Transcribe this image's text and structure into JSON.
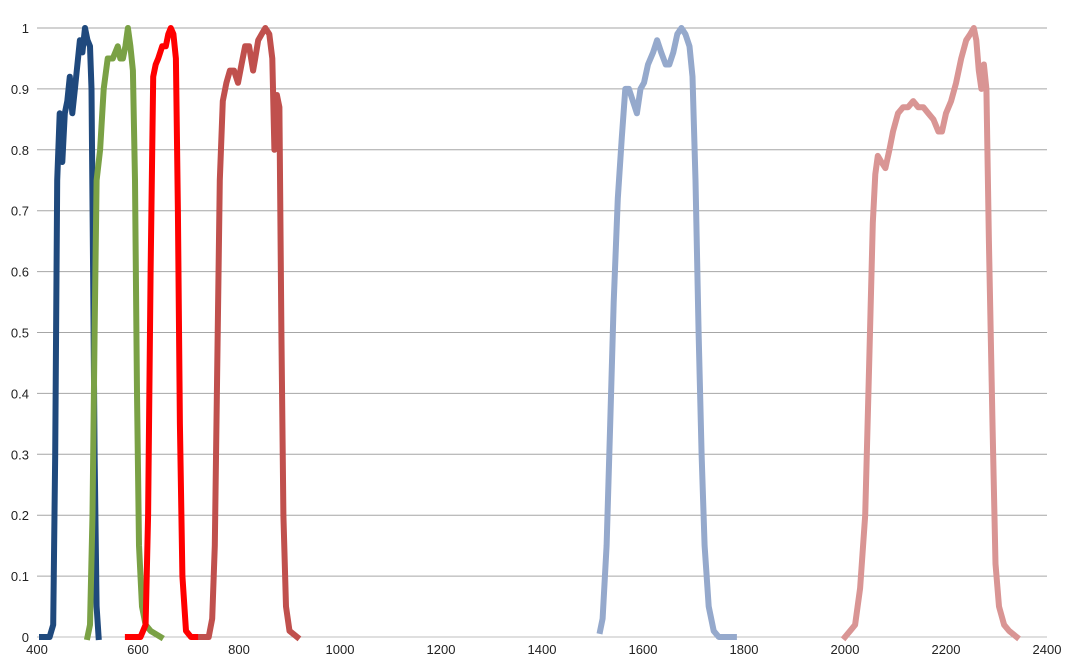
{
  "chart_data": {
    "type": "line",
    "title": "",
    "xlabel": "",
    "ylabel": "",
    "xlim": [
      400,
      2400
    ],
    "ylim": [
      0,
      1
    ],
    "grid": "horizontal",
    "legend": "none",
    "x_ticks": [
      400,
      600,
      800,
      1000,
      1200,
      1400,
      1600,
      1800,
      2000,
      2200,
      2400
    ],
    "y_ticks": [
      0,
      0.1,
      0.2,
      0.3,
      0.4,
      0.5,
      0.6,
      0.7,
      0.8,
      0.9,
      1
    ],
    "x_tick_labels": [
      "400",
      "600",
      "800",
      "1000",
      "1200",
      "1400",
      "1600",
      "1800",
      "2000",
      "2200",
      "2400"
    ],
    "y_tick_labels": [
      "0",
      "0.1",
      "0.2",
      "0.3",
      "0.4",
      "0.5",
      "0.6",
      "0.7",
      "0.8",
      "0.9",
      "1"
    ],
    "series": [
      {
        "color": "#1f497d",
        "points": [
          [
            410,
            0
          ],
          [
            425,
            0
          ],
          [
            432,
            0.02
          ],
          [
            436,
            0.3
          ],
          [
            440,
            0.75
          ],
          [
            445,
            0.86
          ],
          [
            450,
            0.78
          ],
          [
            455,
            0.86
          ],
          [
            460,
            0.88
          ],
          [
            465,
            0.92
          ],
          [
            470,
            0.86
          ],
          [
            475,
            0.9
          ],
          [
            480,
            0.94
          ],
          [
            485,
            0.98
          ],
          [
            490,
            0.96
          ],
          [
            495,
            1.0
          ],
          [
            500,
            0.98
          ],
          [
            505,
            0.97
          ],
          [
            508,
            0.9
          ],
          [
            511,
            0.6
          ],
          [
            514,
            0.3
          ],
          [
            518,
            0.05
          ],
          [
            522,
            0
          ]
        ]
      },
      {
        "color": "#7aa145",
        "points": [
          [
            500,
            0
          ],
          [
            505,
            0.02
          ],
          [
            510,
            0.2
          ],
          [
            514,
            0.5
          ],
          [
            518,
            0.75
          ],
          [
            525,
            0.8
          ],
          [
            532,
            0.9
          ],
          [
            540,
            0.95
          ],
          [
            550,
            0.95
          ],
          [
            560,
            0.97
          ],
          [
            565,
            0.95
          ],
          [
            570,
            0.95
          ],
          [
            575,
            0.97
          ],
          [
            580,
            1.0
          ],
          [
            585,
            0.97
          ],
          [
            590,
            0.93
          ],
          [
            594,
            0.75
          ],
          [
            598,
            0.4
          ],
          [
            602,
            0.15
          ],
          [
            608,
            0.05
          ],
          [
            615,
            0.02
          ],
          [
            625,
            0.01
          ],
          [
            645,
            0
          ]
        ]
      },
      {
        "color": "#ff0000",
        "points": [
          [
            580,
            0
          ],
          [
            605,
            0
          ],
          [
            615,
            0.02
          ],
          [
            620,
            0.2
          ],
          [
            625,
            0.6
          ],
          [
            630,
            0.92
          ],
          [
            635,
            0.94
          ],
          [
            640,
            0.95
          ],
          [
            648,
            0.97
          ],
          [
            655,
            0.97
          ],
          [
            660,
            0.99
          ],
          [
            665,
            1.0
          ],
          [
            670,
            0.99
          ],
          [
            675,
            0.95
          ],
          [
            679,
            0.7
          ],
          [
            683,
            0.35
          ],
          [
            688,
            0.1
          ],
          [
            695,
            0.01
          ],
          [
            705,
            0
          ],
          [
            725,
            0
          ]
        ]
      },
      {
        "color": "#c0504d",
        "points": [
          [
            725,
            0
          ],
          [
            740,
            0
          ],
          [
            747,
            0.03
          ],
          [
            752,
            0.15
          ],
          [
            757,
            0.45
          ],
          [
            762,
            0.75
          ],
          [
            768,
            0.88
          ],
          [
            775,
            0.91
          ],
          [
            782,
            0.93
          ],
          [
            790,
            0.93
          ],
          [
            798,
            0.91
          ],
          [
            805,
            0.94
          ],
          [
            812,
            0.97
          ],
          [
            820,
            0.97
          ],
          [
            828,
            0.93
          ],
          [
            832,
            0.95
          ],
          [
            838,
            0.98
          ],
          [
            845,
            0.99
          ],
          [
            852,
            1.0
          ],
          [
            860,
            0.99
          ],
          [
            866,
            0.95
          ],
          [
            870,
            0.8
          ],
          [
            875,
            0.89
          ],
          [
            880,
            0.87
          ],
          [
            884,
            0.5
          ],
          [
            888,
            0.2
          ],
          [
            893,
            0.05
          ],
          [
            900,
            0.01
          ],
          [
            915,
            0
          ]
        ]
      },
      {
        "color": "#95a9cc",
        "points": [
          [
            1515,
            0.01
          ],
          [
            1520,
            0.03
          ],
          [
            1528,
            0.15
          ],
          [
            1535,
            0.35
          ],
          [
            1542,
            0.55
          ],
          [
            1550,
            0.72
          ],
          [
            1558,
            0.82
          ],
          [
            1565,
            0.9
          ],
          [
            1572,
            0.9
          ],
          [
            1580,
            0.88
          ],
          [
            1588,
            0.86
          ],
          [
            1595,
            0.9
          ],
          [
            1602,
            0.91
          ],
          [
            1610,
            0.94
          ],
          [
            1620,
            0.96
          ],
          [
            1628,
            0.98
          ],
          [
            1636,
            0.96
          ],
          [
            1645,
            0.94
          ],
          [
            1652,
            0.94
          ],
          [
            1660,
            0.96
          ],
          [
            1668,
            0.99
          ],
          [
            1676,
            1.0
          ],
          [
            1684,
            0.99
          ],
          [
            1692,
            0.97
          ],
          [
            1698,
            0.92
          ],
          [
            1704,
            0.75
          ],
          [
            1710,
            0.5
          ],
          [
            1716,
            0.3
          ],
          [
            1722,
            0.15
          ],
          [
            1730,
            0.05
          ],
          [
            1740,
            0.01
          ],
          [
            1750,
            0
          ],
          [
            1780,
            0
          ]
        ]
      },
      {
        "color": "#d99594",
        "points": [
          [
            2000,
            0
          ],
          [
            2010,
            0.01
          ],
          [
            2020,
            0.02
          ],
          [
            2030,
            0.08
          ],
          [
            2040,
            0.2
          ],
          [
            2048,
            0.45
          ],
          [
            2055,
            0.68
          ],
          [
            2060,
            0.76
          ],
          [
            2065,
            0.79
          ],
          [
            2072,
            0.78
          ],
          [
            2080,
            0.77
          ],
          [
            2088,
            0.8
          ],
          [
            2095,
            0.83
          ],
          [
            2105,
            0.86
          ],
          [
            2115,
            0.87
          ],
          [
            2125,
            0.87
          ],
          [
            2135,
            0.88
          ],
          [
            2145,
            0.87
          ],
          [
            2155,
            0.87
          ],
          [
            2165,
            0.86
          ],
          [
            2175,
            0.85
          ],
          [
            2185,
            0.83
          ],
          [
            2192,
            0.83
          ],
          [
            2200,
            0.86
          ],
          [
            2210,
            0.88
          ],
          [
            2220,
            0.91
          ],
          [
            2230,
            0.95
          ],
          [
            2240,
            0.98
          ],
          [
            2248,
            0.99
          ],
          [
            2255,
            1.0
          ],
          [
            2260,
            0.98
          ],
          [
            2265,
            0.93
          ],
          [
            2270,
            0.9
          ],
          [
            2275,
            0.94
          ],
          [
            2280,
            0.9
          ],
          [
            2285,
            0.65
          ],
          [
            2292,
            0.35
          ],
          [
            2298,
            0.12
          ],
          [
            2305,
            0.05
          ],
          [
            2315,
            0.02
          ],
          [
            2325,
            0.01
          ],
          [
            2340,
            0
          ]
        ]
      }
    ]
  }
}
